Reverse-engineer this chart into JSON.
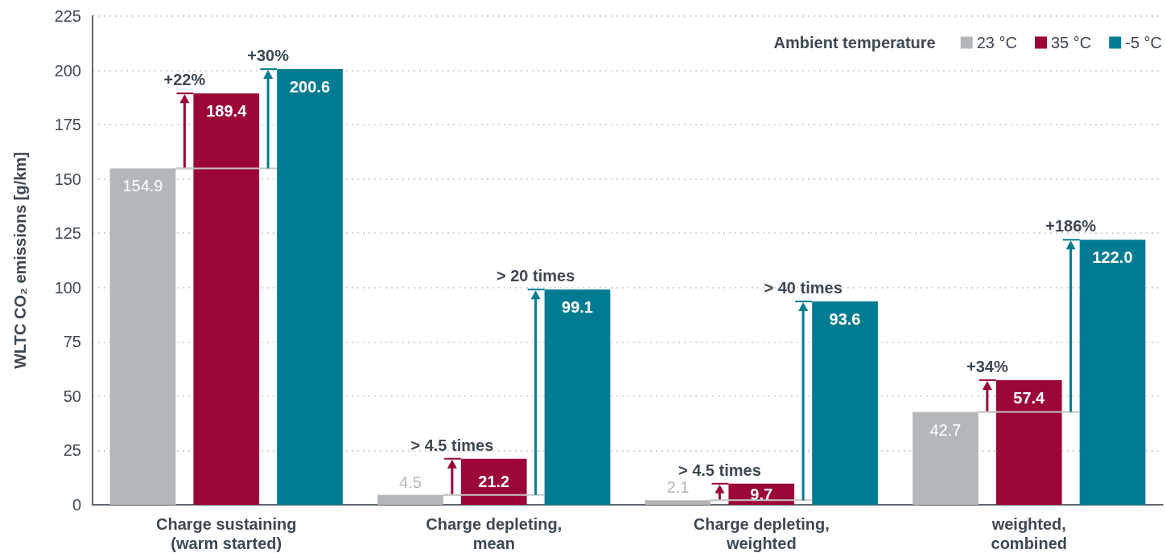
{
  "chart_data": {
    "type": "bar",
    "ylabel": "WLTC CO₂ emissions [g/km]",
    "legend_title": "Ambient temperature",
    "categories": [
      "Charge sustaining\n(warm started)",
      "Charge depleting,\nmean",
      "Charge depleting,\nweighted",
      "weighted,\ncombined"
    ],
    "series": [
      {
        "name": "23 °C",
        "color": "#b3b7b9",
        "values": [
          154.9,
          4.5,
          2.1,
          42.7
        ],
        "value_labels": [
          "154.9",
          "4.5",
          "2.1",
          "42.7"
        ]
      },
      {
        "name": "35 °C",
        "color": "#9c0538",
        "values": [
          189.4,
          21.2,
          9.7,
          57.4
        ],
        "value_labels": [
          "189.4",
          "21.2",
          "9.7",
          "57.4"
        ]
      },
      {
        "name": "-5 °C",
        "color": "#007c92",
        "values": [
          200.6,
          99.1,
          93.6,
          122.0
        ],
        "value_labels": [
          "200.6",
          "99.1",
          "93.6",
          "122.0"
        ]
      }
    ],
    "ylim": [
      0,
      225
    ],
    "yticks": [
      0,
      25,
      50,
      75,
      100,
      125,
      150,
      175,
      200,
      225
    ],
    "grid": "y",
    "legend": "top right",
    "annotations": [
      "+22%",
      "+30%",
      "> 4.5 times",
      "> 20 times",
      "> 4.5 times",
      "> 40 times",
      "+34%",
      "+186%"
    ]
  }
}
